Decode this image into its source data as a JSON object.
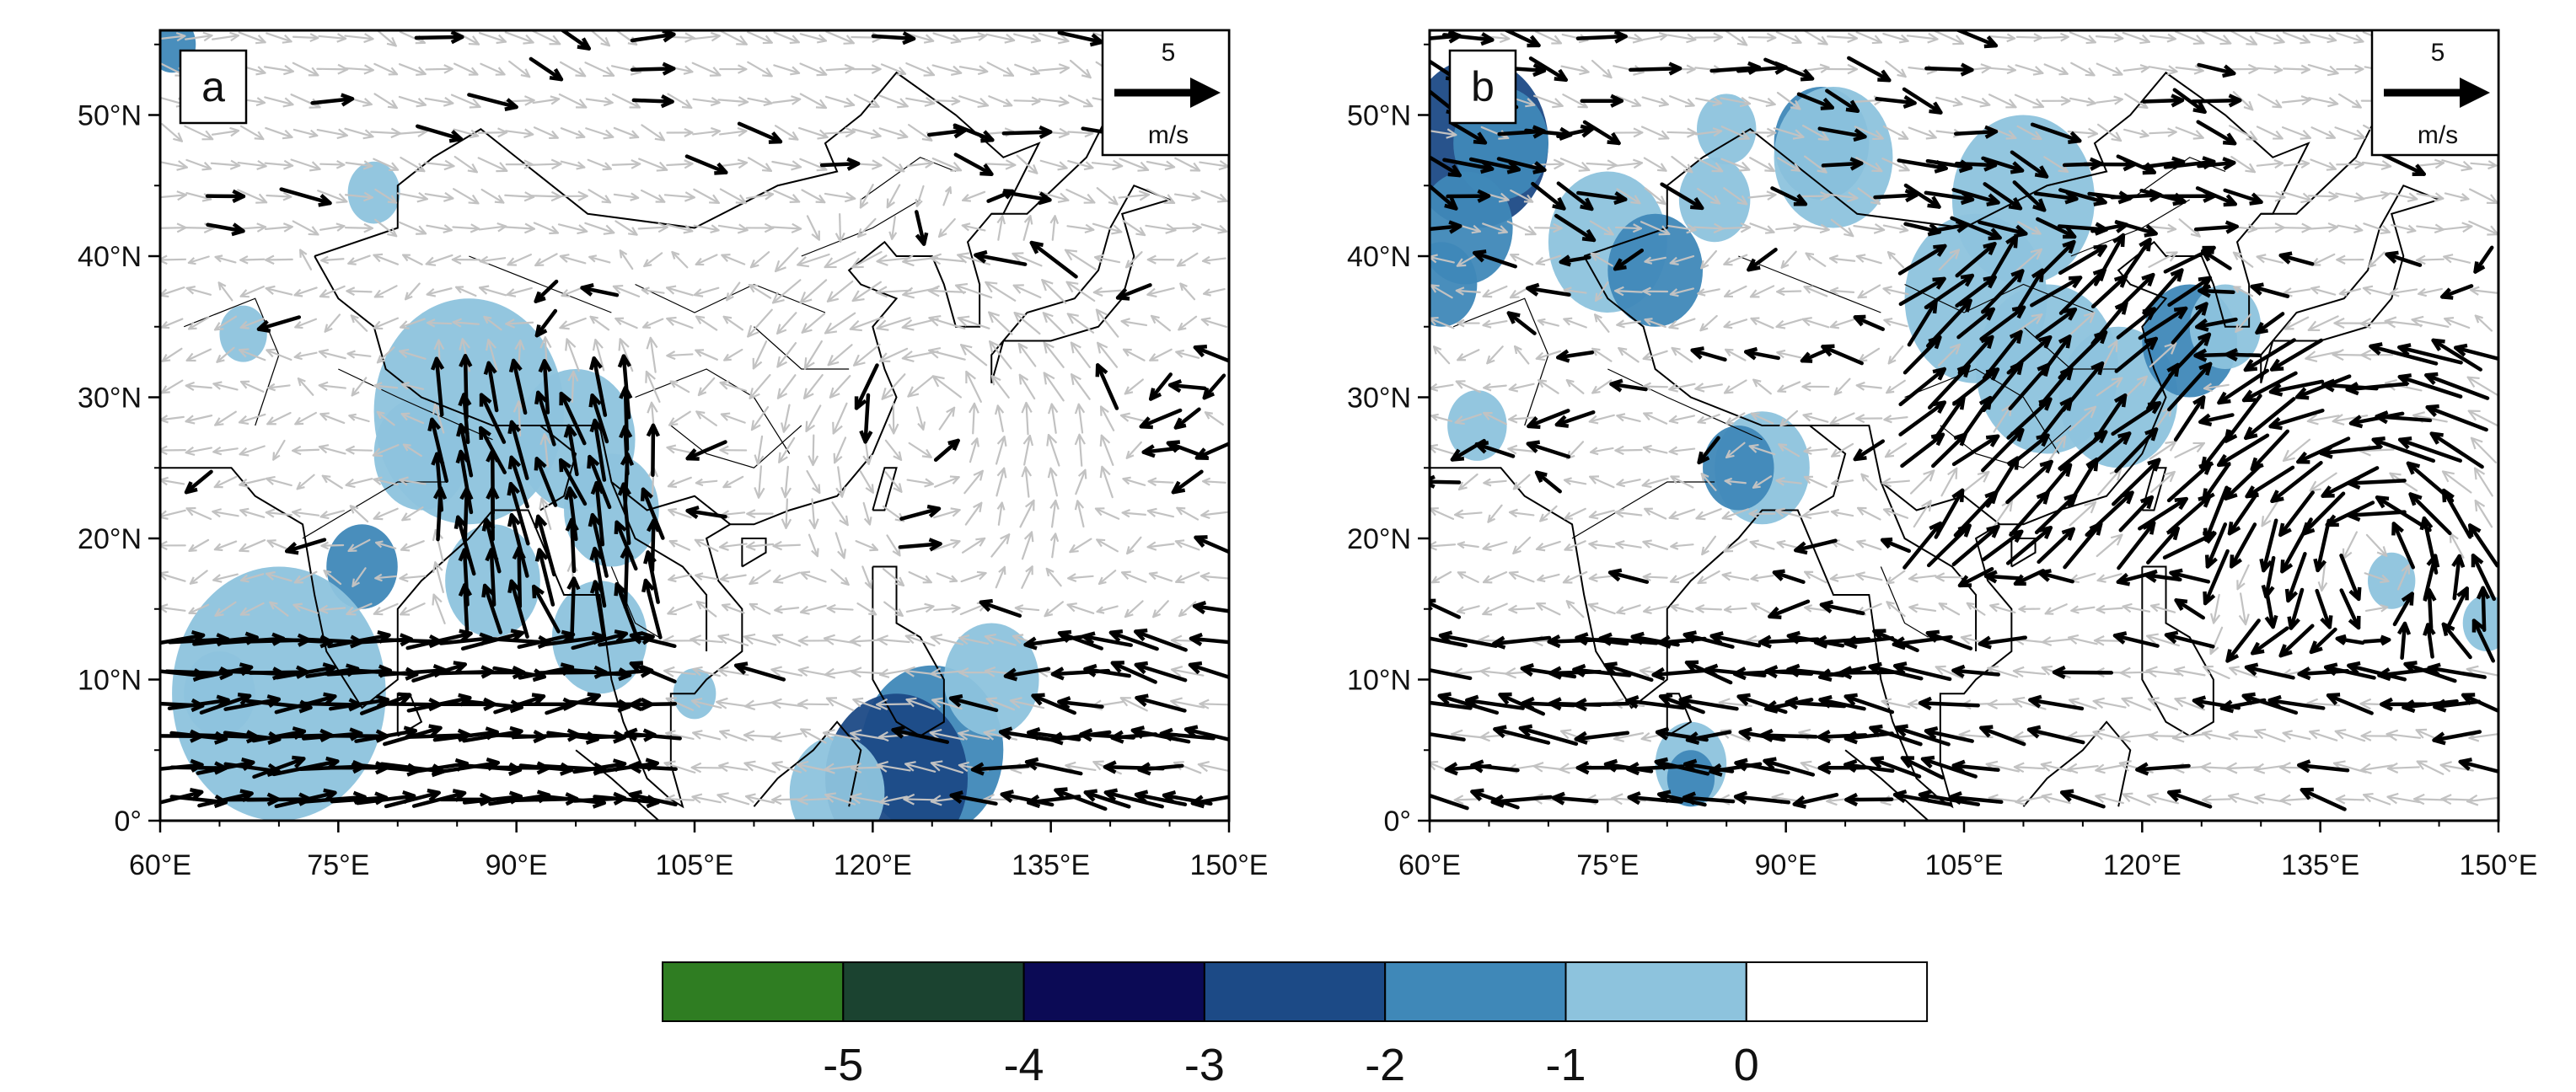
{
  "panels": [
    {
      "label": "a",
      "ref_vector": {
        "value": "5",
        "unit": "m/s"
      },
      "x_ticks": [
        "60°E",
        "75°E",
        "90°E",
        "105°E",
        "120°E",
        "135°E",
        "150°E"
      ],
      "y_ticks": [
        "0°",
        "10°N",
        "20°N",
        "30°N",
        "40°N",
        "50°N"
      ]
    },
    {
      "label": "b",
      "ref_vector": {
        "value": "5",
        "unit": "m/s"
      },
      "x_ticks": [
        "60°E",
        "75°E",
        "90°E",
        "105°E",
        "120°E",
        "135°E",
        "150°E"
      ],
      "y_ticks": [
        "0°",
        "10°N",
        "20°N",
        "30°N",
        "40°N",
        "50°N"
      ]
    }
  ],
  "colorbar": {
    "labels": [
      "-5",
      "-4",
      "-3",
      "-2",
      "-1",
      "0"
    ],
    "colors": [
      "#2f7d22",
      "#1b4330",
      "#0b0a55",
      "#1c4a86",
      "#3f88b8",
      "#8dc3dd",
      "#ffffff"
    ]
  },
  "map_extent": {
    "lon": [
      60,
      150
    ],
    "lat": [
      0,
      56
    ]
  },
  "colors": {
    "vector_significant": "#000000",
    "vector_other": "#c2c2c2",
    "coast": "#000000"
  }
}
